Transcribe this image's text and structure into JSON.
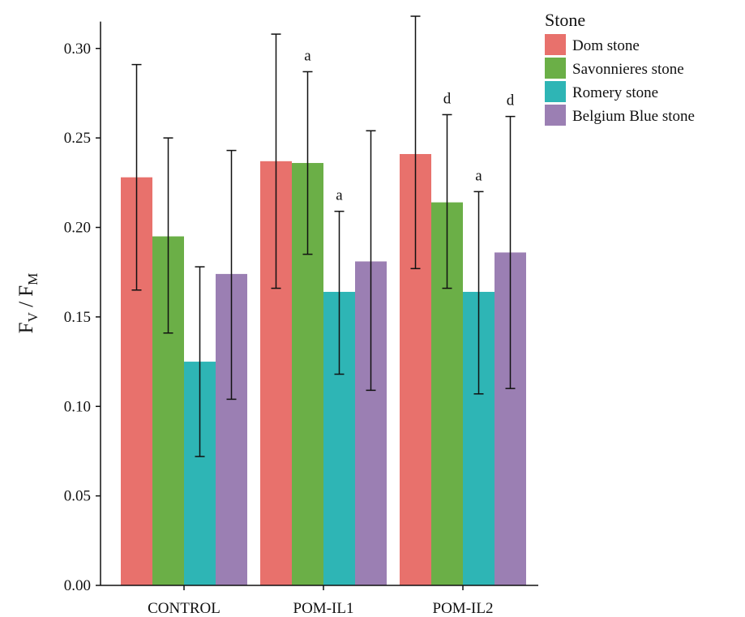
{
  "chart_data": {
    "type": "bar",
    "categories": [
      "CONTROL",
      "POM-IL1",
      "POM-IL2"
    ],
    "ylim": [
      0,
      0.315
    ],
    "yticks": [
      "0.00",
      "0.05",
      "0.10",
      "0.15",
      "0.20",
      "0.25",
      "0.30"
    ],
    "ylabel": {
      "main": "F",
      "sub1": "V",
      "sep": " / F",
      "sub2": "M"
    },
    "legend": {
      "title": "Stone",
      "position": "top-right"
    },
    "series": [
      {
        "name": "Dom stone",
        "color": "#E8716C",
        "values": [
          0.228,
          0.237,
          0.241
        ],
        "err_low": [
          0.165,
          0.166,
          0.177
        ],
        "err_high": [
          0.291,
          0.308,
          0.318
        ],
        "sig": [
          "",
          "",
          ""
        ]
      },
      {
        "name": "Savonnieres stone",
        "color": "#6BAF47",
        "values": [
          0.195,
          0.236,
          0.214
        ],
        "err_low": [
          0.141,
          0.185,
          0.166
        ],
        "err_high": [
          0.25,
          0.287,
          0.263
        ],
        "sig": [
          "",
          "a",
          "d"
        ]
      },
      {
        "name": "Romery stone",
        "color": "#2EB5B5",
        "values": [
          0.125,
          0.164,
          0.164
        ],
        "err_low": [
          0.072,
          0.118,
          0.107
        ],
        "err_high": [
          0.178,
          0.209,
          0.22
        ],
        "sig": [
          "",
          "a",
          "a"
        ]
      },
      {
        "name": "Belgium Blue stone",
        "color": "#9B7FB3",
        "values": [
          0.174,
          0.181,
          0.186
        ],
        "err_low": [
          0.104,
          0.109,
          0.11
        ],
        "err_high": [
          0.243,
          0.254,
          0.262
        ],
        "sig": [
          "",
          "",
          "d"
        ]
      }
    ]
  }
}
